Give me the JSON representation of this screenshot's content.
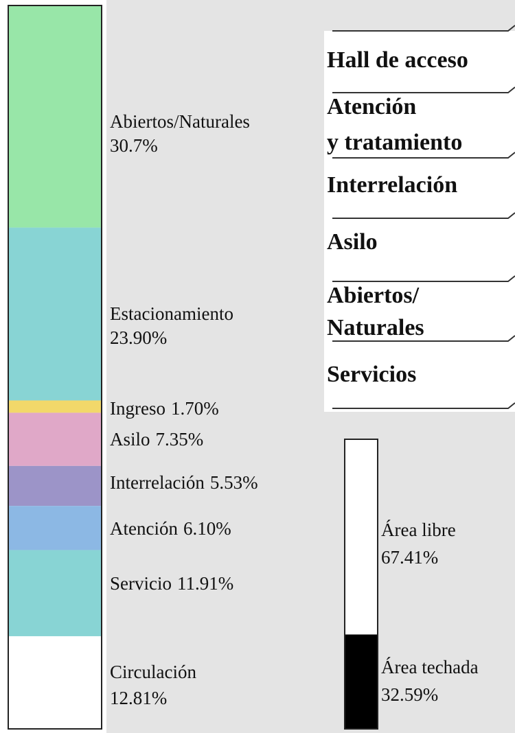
{
  "chart_data": [
    {
      "type": "stacked_bar",
      "categories": [
        "Abiertos/Naturales",
        "Estacionamiento",
        "Ingreso",
        "Asilo",
        "Interrelación",
        "Atención",
        "Servicio",
        "Circulación"
      ],
      "values": [
        30.7,
        23.9,
        1.7,
        7.35,
        5.53,
        6.1,
        11.91,
        12.81
      ],
      "value_labels": [
        "30.7%",
        "23.90%",
        "1.70%",
        "7.35%",
        "5.53%",
        "6.10%",
        "11.91%",
        "12.81%"
      ],
      "colors": [
        "#98e6a8",
        "#88d4d4",
        "#f2d86a",
        "#e0a8c8",
        "#9c94c8",
        "#8cb8e4",
        "#88d4d4",
        "#ffffff"
      ]
    },
    {
      "type": "stacked_bar",
      "categories": [
        "Área libre",
        "Área techada"
      ],
      "values": [
        67.41,
        32.59
      ],
      "value_labels": [
        "67.41%",
        "32.59%"
      ],
      "colors": [
        "#ffffff",
        "#000000"
      ]
    }
  ],
  "program_list": {
    "items": [
      {
        "lines": [
          "Hall de acceso"
        ]
      },
      {
        "lines": [
          "Atención",
          "y tratamiento"
        ]
      },
      {
        "lines": [
          "Interrelación"
        ]
      },
      {
        "lines": [
          "Asilo"
        ]
      },
      {
        "lines": [
          "Abiertos/",
          "Naturales"
        ]
      },
      {
        "lines": [
          "Servicios"
        ]
      }
    ]
  }
}
